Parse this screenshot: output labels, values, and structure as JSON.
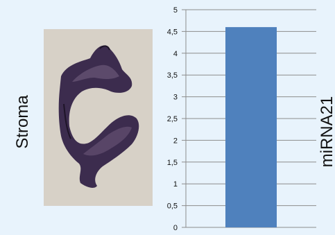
{
  "panel": {
    "left_label": "Stroma",
    "right_label": "miRNA21"
  },
  "colors": {
    "background": "#e8f3fc",
    "bar": "#4f81bd",
    "grid": "#8c8c8c",
    "tissue_dark": "#3c2c4e",
    "tissue_mid": "#6a5778",
    "photo_background": "#dcd6cc"
  },
  "chart_data": {
    "type": "bar",
    "categories": [
      ""
    ],
    "values": [
      4.6
    ],
    "title": "",
    "xlabel": "",
    "ylabel": "",
    "ylim": [
      0,
      5
    ],
    "yticks": [
      "0",
      "0,5",
      "1",
      "1,5",
      "2",
      "2,5",
      "3",
      "3,5",
      "4",
      "4,5",
      "5"
    ],
    "grid": true,
    "legend": "none"
  }
}
